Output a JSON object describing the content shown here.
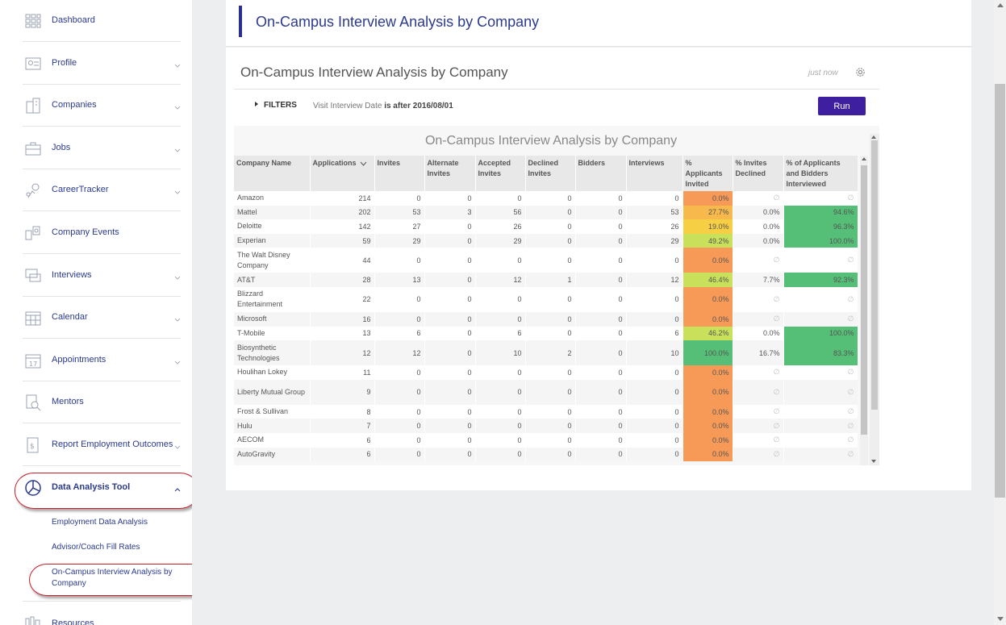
{
  "sidebar": {
    "items": [
      {
        "label": "Dashboard",
        "icon": "dashboard-icon",
        "has_chevron": false
      },
      {
        "label": "Profile",
        "icon": "profile-icon",
        "has_chevron": true
      },
      {
        "label": "Companies",
        "icon": "companies-icon",
        "has_chevron": true
      },
      {
        "label": "Jobs",
        "icon": "jobs-icon",
        "has_chevron": true
      },
      {
        "label": "CareerTracker",
        "icon": "careertracker-icon",
        "has_chevron": true
      },
      {
        "label": "Company Events",
        "icon": "company-events-icon",
        "has_chevron": false
      },
      {
        "label": "Interviews",
        "icon": "interviews-icon",
        "has_chevron": true
      },
      {
        "label": "Calendar",
        "icon": "calendar-icon",
        "has_chevron": true
      },
      {
        "label": "Appointments",
        "icon": "appointments-icon",
        "has_chevron": true
      },
      {
        "label": "Mentors",
        "icon": "mentors-icon",
        "has_chevron": false
      },
      {
        "label": "Report Employment Outcomes",
        "icon": "report-icon",
        "has_chevron": true
      },
      {
        "label": "Data Analysis Tool",
        "icon": "pie-chart-icon",
        "has_chevron": true,
        "expanded": true
      }
    ],
    "sub_items": [
      {
        "label": "Employment Data Analysis"
      },
      {
        "label": "Advisor/Coach Fill Rates"
      },
      {
        "label": "On-Campus Interview Analysis by Company"
      }
    ],
    "partial_item": {
      "label": "Resources"
    }
  },
  "header": {
    "title": "On-Campus Interview Analysis by Company"
  },
  "report": {
    "title": "On-Campus Interview Analysis by Company",
    "timestamp": "just now",
    "filters_label": "FILTERS",
    "filter_prefix": "Visit Interview Date ",
    "filter_condition": "is after 2016/08/01",
    "run_label": "Run"
  },
  "colors": {
    "orange": "#f79a58",
    "orange_yellow": "#f7b84c",
    "yellow": "#f6cf45",
    "yellow_green": "#c9e05a",
    "green": "#55bf77",
    "accent": "#3d1fa0"
  },
  "chart_data": {
    "type": "table",
    "title": "On-Campus Interview Analysis by Company",
    "columns": [
      "Company Name",
      "Applications",
      "Invites",
      "Alternate Invites",
      "Accepted Invites",
      "Declined Invites",
      "Bidders",
      "Interviews",
      "% Applicants Invited",
      "% Invites Declined",
      "% of Applicants and Bidders Interviewed"
    ],
    "sorted_by": "Applications",
    "rows": [
      [
        "Amazon",
        "214",
        "0",
        "0",
        "0",
        "0",
        "0",
        "0",
        "0.0%",
        "∅",
        "∅"
      ],
      [
        "Mattel",
        "202",
        "53",
        "3",
        "56",
        "0",
        "0",
        "53",
        "27.7%",
        "0.0%",
        "94.6%"
      ],
      [
        "Deloitte",
        "142",
        "27",
        "0",
        "26",
        "0",
        "0",
        "26",
        "19.0%",
        "0.0%",
        "96.3%"
      ],
      [
        "Experian",
        "59",
        "29",
        "0",
        "29",
        "0",
        "0",
        "29",
        "49.2%",
        "0.0%",
        "100.0%"
      ],
      [
        "The Walt Disney Company",
        "44",
        "0",
        "0",
        "0",
        "0",
        "0",
        "0",
        "0.0%",
        "∅",
        "∅"
      ],
      [
        "AT&T",
        "28",
        "13",
        "0",
        "12",
        "1",
        "0",
        "12",
        "46.4%",
        "7.7%",
        "92.3%"
      ],
      [
        "Blizzard Entertainment",
        "22",
        "0",
        "0",
        "0",
        "0",
        "0",
        "0",
        "0.0%",
        "∅",
        "∅"
      ],
      [
        "Microsoft",
        "16",
        "0",
        "0",
        "0",
        "0",
        "0",
        "0",
        "0.0%",
        "∅",
        "∅"
      ],
      [
        "T-Mobile",
        "13",
        "6",
        "0",
        "6",
        "0",
        "0",
        "6",
        "46.2%",
        "0.0%",
        "100.0%"
      ],
      [
        "Biosynthetic Technologies",
        "12",
        "12",
        "0",
        "10",
        "2",
        "0",
        "10",
        "100.0%",
        "16.7%",
        "83.3%"
      ],
      [
        "Houlihan Lokey",
        "11",
        "0",
        "0",
        "0",
        "0",
        "0",
        "0",
        "0.0%",
        "∅",
        "∅"
      ],
      [
        "Liberty Mutual Group",
        "9",
        "0",
        "0",
        "0",
        "0",
        "0",
        "0",
        "0.0%",
        "∅",
        "∅"
      ],
      [
        "Frost & Sullivan",
        "8",
        "0",
        "0",
        "0",
        "0",
        "0",
        "0",
        "0.0%",
        "∅",
        "∅"
      ],
      [
        "Hulu",
        "7",
        "0",
        "0",
        "0",
        "0",
        "0",
        "0",
        "0.0%",
        "∅",
        "∅"
      ],
      [
        "AECOM",
        "6",
        "0",
        "0",
        "0",
        "0",
        "0",
        "0",
        "0.0%",
        "∅",
        "∅"
      ],
      [
        "AutoGravity",
        "6",
        "0",
        "0",
        "0",
        "0",
        "0",
        "0",
        "0.0%",
        "∅",
        "∅"
      ]
    ],
    "cell_colors": {
      "applicants_invited": [
        "orange",
        "orange_yellow",
        "yellow",
        "yellow_green",
        "orange",
        "yellow_green",
        "orange",
        "orange",
        "yellow_green",
        "green",
        "orange",
        "orange",
        "orange",
        "orange",
        "orange",
        "orange"
      ],
      "interviewed": [
        "",
        "green",
        "green",
        "green",
        "",
        "green",
        "",
        "",
        "green",
        "green",
        "",
        "",
        "",
        "",
        "",
        ""
      ]
    }
  }
}
